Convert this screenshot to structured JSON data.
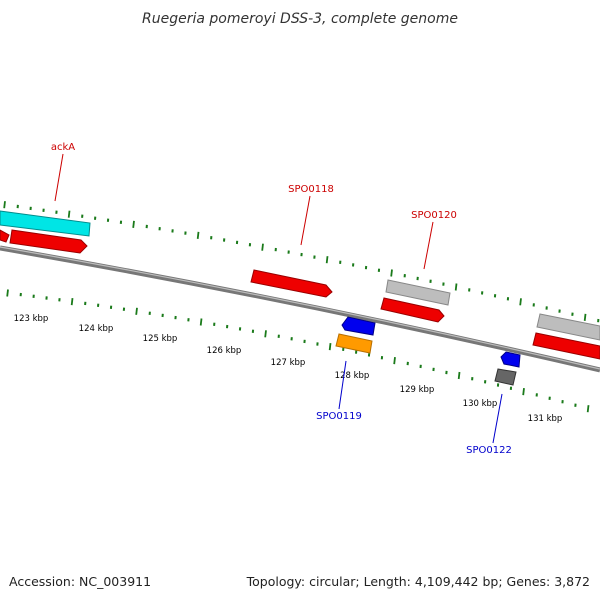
{
  "title": "Ruegeria pomeroyi DSS-3, complete genome",
  "footer": {
    "accession": "Accession: NC_003911",
    "summary": "Topology: circular; Length: 4,109,442 bp; Genes: 3,872"
  },
  "colors": {
    "forward_label": "#cc0000",
    "reverse_label": "#0000cc",
    "ticks": "#1a7a1a",
    "backbone": "#777777"
  },
  "scale_labels": [
    "123 kbp",
    "124 kbp",
    "125 kbp",
    "126 kbp",
    "127 kbp",
    "128 kbp",
    "129 kbp",
    "130 kbp",
    "131 kbp"
  ],
  "gene_labels": {
    "ackA": "ackA",
    "SPO0118": "SPO0118",
    "SPO0120": "SPO0120",
    "SPO0119": "SPO0119",
    "SPO0122": "SPO0122"
  }
}
